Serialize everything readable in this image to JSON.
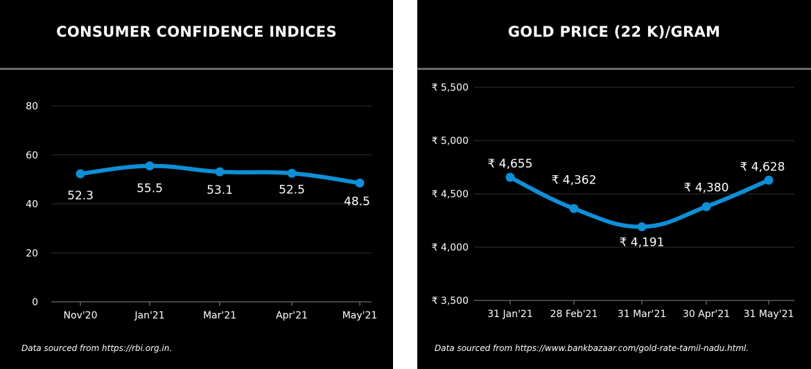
{
  "colors": {
    "background": "#000000",
    "line": "#0e8fd6",
    "text": "#ffffff",
    "grid": "#333333",
    "rule": "#6b6b6b"
  },
  "left_panel": {
    "title": "CONSUMER CONFIDENCE INDICES",
    "source": "Data sourced from https://rbi.org.in."
  },
  "right_panel": {
    "title": "GOLD PRICE (22 K)/GRAM",
    "source": "Data sourced from https://www.bankbazaar.com/gold-rate-tamil-nadu.html."
  },
  "chart_data": [
    {
      "type": "line",
      "title": "CONSUMER CONFIDENCE INDICES",
      "categories": [
        "Nov'20",
        "Jan'21",
        "Mar'21",
        "Apr'21",
        "May'21"
      ],
      "values": [
        52.3,
        55.5,
        53.1,
        52.5,
        48.5
      ],
      "data_labels": [
        "52.3",
        "55.5",
        "53.1",
        "52.5",
        "48.5"
      ],
      "ylim": [
        0,
        80
      ],
      "yticks": [
        0,
        20,
        40,
        60,
        80
      ],
      "ytick_labels": [
        "0",
        "20",
        "40",
        "60",
        "80"
      ],
      "grid": true,
      "legend": "none",
      "smooth": true
    },
    {
      "type": "line",
      "title": "GOLD PRICE (22 K)/GRAM",
      "categories": [
        "31 Jan'21",
        "28 Feb'21",
        "31 Mar'21",
        "30 Apr'21",
        "31 May'21"
      ],
      "values": [
        4655,
        4362,
        4191,
        4380,
        4628
      ],
      "data_labels": [
        "₹ 4,655",
        "₹ 4,362",
        "₹ 4,191",
        "₹ 4,380",
        "₹ 4,628"
      ],
      "ylim": [
        3500,
        5500
      ],
      "yticks": [
        3500,
        4000,
        4500,
        5000,
        5500
      ],
      "ytick_labels": [
        "₹ 3,500",
        "₹ 4,000",
        "₹ 4,500",
        "₹ 5,000",
        "₹ 5,500"
      ],
      "grid": true,
      "legend": "none",
      "smooth": true
    }
  ]
}
